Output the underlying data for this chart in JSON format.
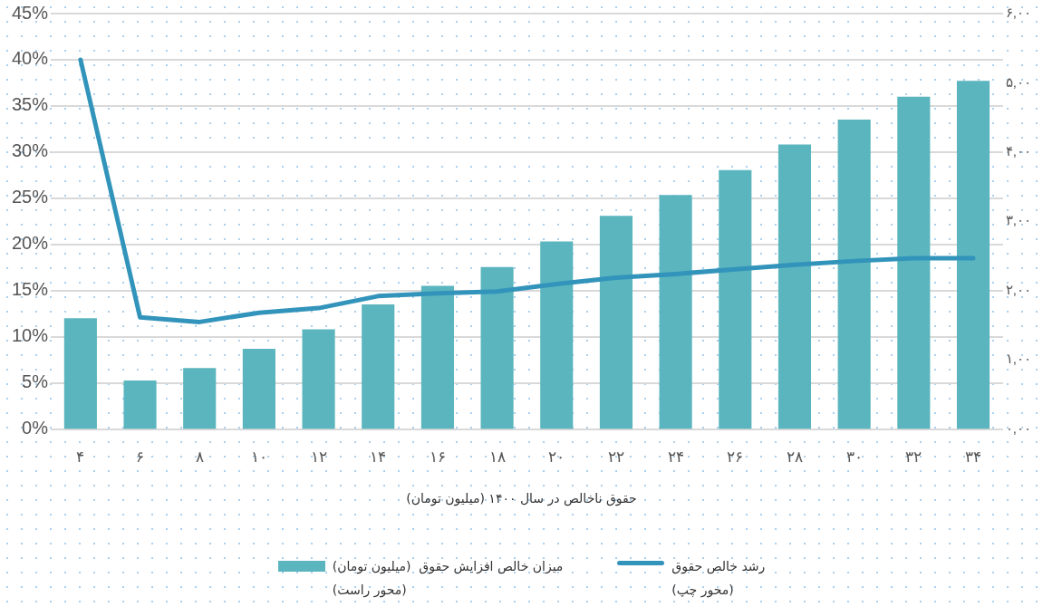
{
  "chart_data": {
    "type": "bar",
    "xlabel": "حقوق ناخالص در سال ۱۴۰۰ (میلیون تومان)",
    "categories": [
      "۴",
      "۶",
      "۸",
      "۱۰",
      "۱۲",
      "۱۴",
      "۱۶",
      "۱۸",
      "۲۰",
      "۲۲",
      "۲۴",
      "۲۶",
      "۲۸",
      "۳۰",
      "۳۲",
      "۳۴"
    ],
    "series": [
      {
        "name": "رشد خالص حقوق\n(محور چپ)",
        "type": "line",
        "color": "#3394bb",
        "values": [
          40.0,
          12.1,
          11.6,
          12.6,
          13.1,
          14.4,
          14.7,
          14.9,
          15.7,
          16.4,
          16.8,
          17.3,
          17.8,
          18.2,
          18.5,
          18.5
        ]
      },
      {
        "name": "میزان خالص افزایش حقوق  (میلیون تومان)\n(محور راست)",
        "axis": "y2",
        "color": "#5ab5be",
        "values": [
          1.6,
          0.7,
          0.88,
          1.16,
          1.44,
          1.8,
          2.07,
          2.34,
          2.71,
          3.08,
          3.38,
          3.74,
          4.11,
          4.47,
          4.8,
          5.03
        ]
      }
    ],
    "ylim": [
      0,
      45
    ],
    "yticks": [
      {
        "value": 0,
        "label": "0%"
      },
      {
        "value": 5,
        "label": "5%"
      },
      {
        "value": 10,
        "label": "10%"
      },
      {
        "value": 15,
        "label": "15%"
      },
      {
        "value": 20,
        "label": "20%"
      },
      {
        "value": 25,
        "label": "25%"
      },
      {
        "value": 30,
        "label": "30%"
      },
      {
        "value": 35,
        "label": "35%"
      },
      {
        "value": 40,
        "label": "40%"
      },
      {
        "value": 45,
        "label": "45%"
      }
    ],
    "y2lim": [
      0,
      6
    ],
    "y2ticks": [
      {
        "value": 0,
        "label": "۰,۰۰"
      },
      {
        "value": 1,
        "label": "۱,۰۰"
      },
      {
        "value": 2,
        "label": "۲,۰۰"
      },
      {
        "value": 3,
        "label": "۳,۰۰"
      },
      {
        "value": 4,
        "label": "۴,۰۰"
      },
      {
        "value": 5,
        "label": "۵,۰۰"
      },
      {
        "value": 6,
        "label": "۶,۰۰"
      }
    ],
    "grid": "y",
    "legend": "bottom",
    "marker": "none",
    "line_style": "solid"
  }
}
